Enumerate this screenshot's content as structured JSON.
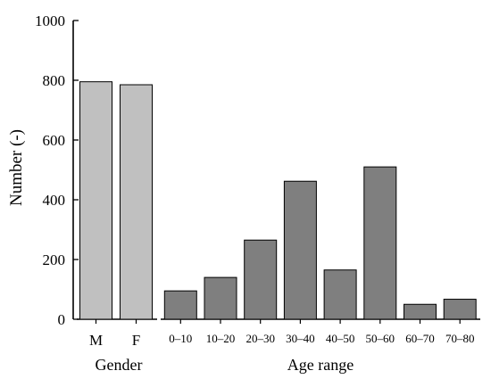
{
  "chart_data": [
    {
      "type": "bar",
      "group_label": "Gender",
      "categories": [
        "M",
        "F"
      ],
      "values": [
        795,
        785
      ],
      "color": "#c0c0c0"
    },
    {
      "type": "bar",
      "group_label": "Age range",
      "categories": [
        "0–10",
        "10–20",
        "20–30",
        "30–40",
        "40–50",
        "50–60",
        "60–70",
        "70–80"
      ],
      "values": [
        95,
        140,
        265,
        462,
        165,
        510,
        50,
        67
      ],
      "color": "#7f7f7f"
    }
  ],
  "ylabel": "Number (-)",
  "yticks": [
    0,
    200,
    400,
    600,
    800,
    1000
  ],
  "ylim": [
    0,
    1000
  ],
  "grid": false
}
